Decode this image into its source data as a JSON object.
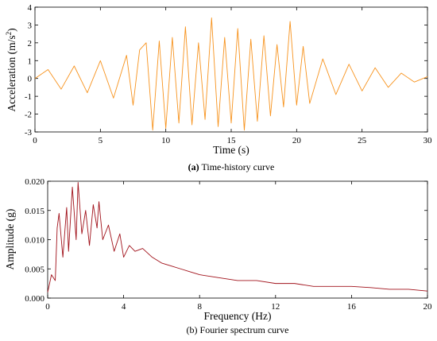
{
  "chart_data": [
    {
      "type": "line",
      "caption_tag": "(a)",
      "caption": "Time-history curve",
      "xlabel": "Time (s)",
      "ylabel_main": "Acceleration (m/s",
      "ylabel_sup": "2",
      "ylabel_close": ")",
      "xlim": [
        0,
        30
      ],
      "ylim": [
        -3,
        4
      ],
      "xticks": [
        "0",
        "5",
        "10",
        "15",
        "20",
        "25",
        "30"
      ],
      "yticks": [
        "-3",
        "-2",
        "-1",
        "0",
        "1",
        "2",
        "3",
        "4"
      ],
      "grid": false,
      "color": "#f7931e",
      "series": [
        {
          "x": [
            0,
            1,
            2,
            3,
            4,
            5,
            6,
            7,
            7.5,
            8,
            8.5,
            9,
            9.5,
            10,
            10.5,
            11,
            11.5,
            12,
            12.5,
            13,
            13.5,
            14,
            14.5,
            15,
            15.5,
            16,
            16.5,
            17,
            17.5,
            18,
            18.5,
            19,
            19.5,
            20,
            20.5,
            21,
            22,
            23,
            24,
            25,
            26,
            27,
            28,
            29,
            30
          ],
          "y": [
            0,
            0.5,
            -0.6,
            0.7,
            -0.8,
            1.0,
            -1.1,
            1.3,
            -1.5,
            1.6,
            2.0,
            -2.9,
            2.1,
            -2.8,
            2.3,
            -2.5,
            2.9,
            -2.6,
            2.0,
            -2.3,
            3.4,
            -2.7,
            2.3,
            -2.5,
            2.8,
            -2.9,
            2.2,
            -2.4,
            2.4,
            -2.1,
            1.9,
            -1.6,
            3.2,
            -1.5,
            1.8,
            -1.4,
            1.1,
            -0.9,
            0.8,
            -0.7,
            0.6,
            -0.5,
            0.3,
            -0.2,
            0.1
          ]
        }
      ]
    },
    {
      "type": "line",
      "caption_tag": "(b)",
      "caption": "Fourier spectrum curve",
      "xlabel": "Frequency (Hz)",
      "ylabel": "Amplitude (g)",
      "xlim": [
        0,
        20
      ],
      "ylim": [
        0,
        0.02
      ],
      "xticks": [
        "0",
        "4",
        "8",
        "12",
        "16",
        "20"
      ],
      "yticks": [
        "0.000",
        "0.005",
        "0.010",
        "0.015",
        "0.020"
      ],
      "grid": false,
      "color": "#a1121b",
      "series": [
        {
          "x": [
            0,
            0.2,
            0.4,
            0.5,
            0.6,
            0.8,
            1.0,
            1.1,
            1.3,
            1.5,
            1.6,
            1.8,
            2.0,
            2.2,
            2.4,
            2.6,
            2.7,
            2.9,
            3.2,
            3.5,
            3.8,
            4.0,
            4.3,
            4.6,
            5.0,
            5.5,
            6.0,
            6.5,
            7.0,
            7.5,
            8.0,
            9.0,
            10.0,
            11.0,
            12.0,
            13.0,
            14.0,
            15.0,
            16.0,
            17.0,
            18.0,
            19.0,
            20.0
          ],
          "y": [
            0.001,
            0.004,
            0.003,
            0.012,
            0.0145,
            0.007,
            0.0155,
            0.008,
            0.019,
            0.01,
            0.0198,
            0.011,
            0.015,
            0.009,
            0.016,
            0.012,
            0.0165,
            0.01,
            0.0125,
            0.008,
            0.011,
            0.007,
            0.009,
            0.008,
            0.0085,
            0.007,
            0.006,
            0.0055,
            0.005,
            0.0045,
            0.004,
            0.0035,
            0.003,
            0.003,
            0.0025,
            0.0025,
            0.002,
            0.002,
            0.002,
            0.0018,
            0.0015,
            0.0015,
            0.0012
          ]
        }
      ]
    }
  ]
}
